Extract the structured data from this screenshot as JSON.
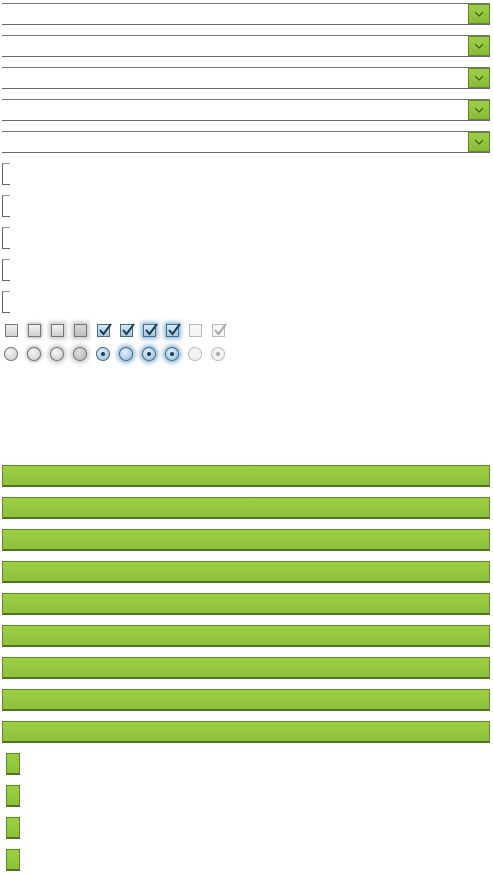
{
  "colors": {
    "accent_green": "#93c83f",
    "accent_green_border": "#5e8b1f",
    "checked_blue": "#8fb9d6"
  },
  "selects": [
    {
      "value": "",
      "icon": "chevron-down-icon"
    },
    {
      "value": "",
      "icon": "chevron-down-icon"
    },
    {
      "value": "",
      "icon": "chevron-down-icon"
    },
    {
      "value": "",
      "icon": "chevron-down-icon"
    },
    {
      "value": "",
      "icon": "chevron-down-icon"
    }
  ],
  "fields": [
    {
      "value": "",
      "placeholder": ""
    },
    {
      "value": "",
      "placeholder": ""
    },
    {
      "value": "",
      "placeholder": ""
    },
    {
      "value": "",
      "placeholder": ""
    },
    {
      "value": "",
      "placeholder": ""
    }
  ],
  "checkboxes": [
    {
      "state": "unchecked"
    },
    {
      "state": "unchecked-hover"
    },
    {
      "state": "unchecked-focus"
    },
    {
      "state": "unchecked-pressed"
    },
    {
      "state": "checked"
    },
    {
      "state": "checked"
    },
    {
      "state": "checked-hover"
    },
    {
      "state": "checked-focus"
    },
    {
      "state": "unchecked-disabled"
    },
    {
      "state": "checked-disabled"
    }
  ],
  "radios": [
    {
      "state": "unselected"
    },
    {
      "state": "unselected-hover"
    },
    {
      "state": "unselected-focus"
    },
    {
      "state": "unselected-pressed"
    },
    {
      "state": "selected"
    },
    {
      "state": "selected-pressed"
    },
    {
      "state": "selected-hover"
    },
    {
      "state": "selected-focus"
    },
    {
      "state": "unselected-disabled"
    },
    {
      "state": "selected-disabled"
    }
  ],
  "buttons": [
    {
      "label": ""
    },
    {
      "label": ""
    },
    {
      "label": ""
    },
    {
      "label": ""
    },
    {
      "label": ""
    },
    {
      "label": ""
    },
    {
      "label": ""
    },
    {
      "label": ""
    },
    {
      "label": ""
    }
  ],
  "small_buttons": [
    {
      "label": ""
    },
    {
      "label": ""
    },
    {
      "label": ""
    },
    {
      "label": ""
    }
  ]
}
